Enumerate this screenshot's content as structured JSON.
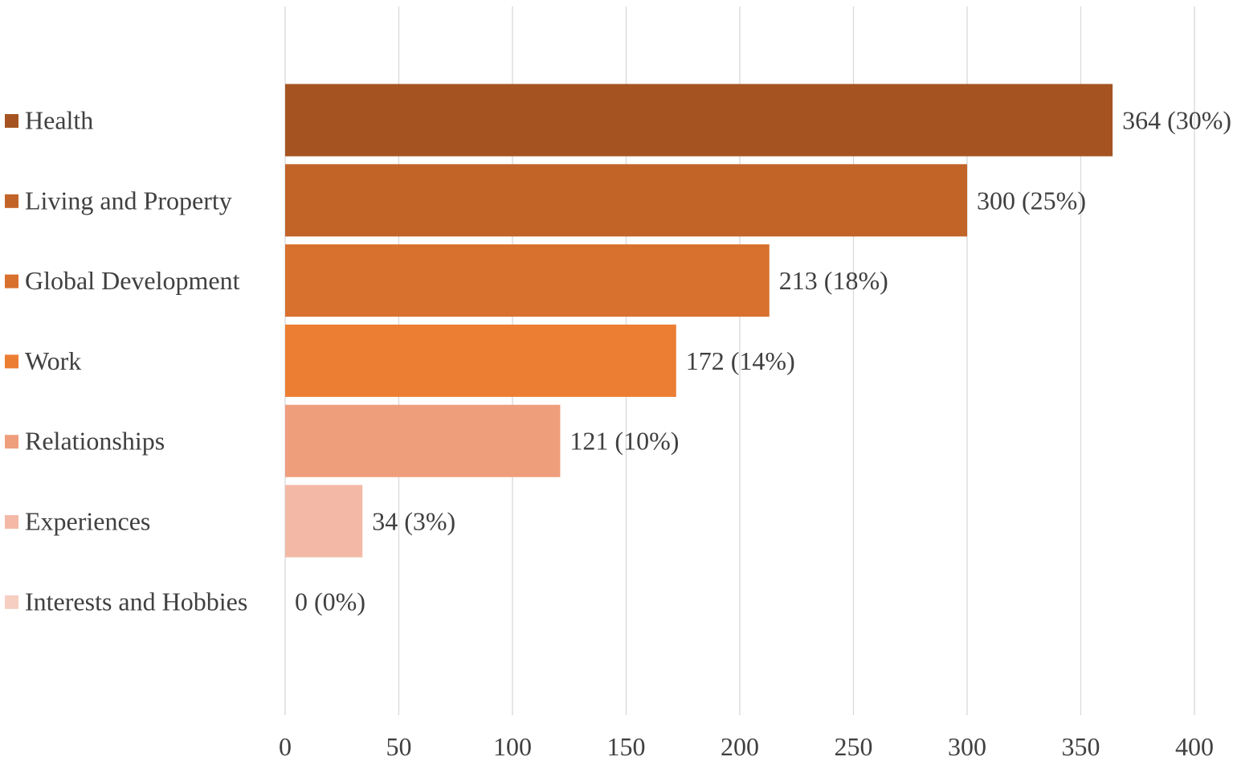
{
  "chart_data": {
    "type": "bar",
    "orientation": "horizontal",
    "categories": [
      "Health",
      "Living and Property",
      "Global Development",
      "Work",
      "Relationships",
      "Experiences",
      "Interests and Hobbies"
    ],
    "values": [
      364,
      300,
      213,
      172,
      121,
      34,
      0
    ],
    "data_labels": [
      "364 (30%)",
      "300 (25%)",
      "213 (18%)",
      "172 (14%)",
      "121 (10%)",
      "34 (3%)",
      "0 (0%)"
    ],
    "colors": [
      "#A55421",
      "#C26428",
      "#D8702E",
      "#EC7E33",
      "#EF9E7C",
      "#F3B9A6",
      "#F6CEC2"
    ],
    "xlim": [
      0,
      400
    ],
    "x_ticks": [
      0,
      50,
      100,
      150,
      200,
      250,
      300,
      350,
      400
    ],
    "x_tick_labels": [
      "0",
      "50",
      "100",
      "150",
      "200",
      "250",
      "300",
      "350",
      "400"
    ],
    "title": "",
    "xlabel": "",
    "ylabel": "",
    "grid": "vertical",
    "legend": "left"
  }
}
